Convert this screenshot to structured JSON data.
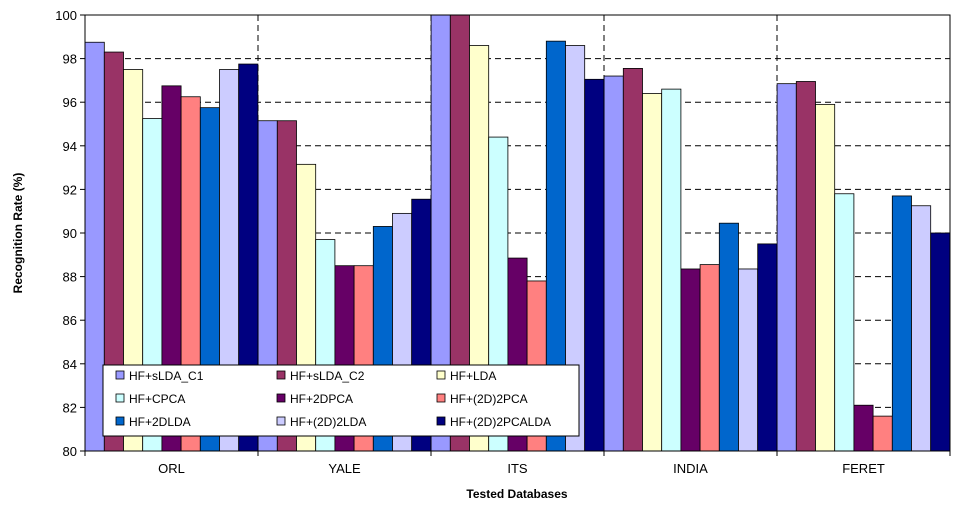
{
  "chart_data": {
    "type": "bar",
    "xlabel": "Tested Databases",
    "ylabel": "Recognition Rate (%)",
    "ylim": [
      80,
      100
    ],
    "yticks": [
      80,
      82,
      84,
      86,
      88,
      90,
      92,
      94,
      96,
      98,
      100
    ],
    "grid": "dashed",
    "legend_position": "bottom-left",
    "categories": [
      "ORL",
      "YALE",
      "ITS",
      "INDIA",
      "FERET"
    ],
    "series": [
      {
        "name": "HF+sLDA_C1",
        "color": "#9999ff",
        "values": [
          98.75,
          95.15,
          100,
          97.2,
          96.85
        ]
      },
      {
        "name": "HF+sLDA_C2",
        "color": "#993366",
        "values": [
          98.3,
          95.15,
          100,
          97.55,
          96.95
        ]
      },
      {
        "name": "HF+LDA",
        "color": "#ffffcc",
        "values": [
          97.5,
          93.15,
          98.6,
          96.4,
          95.9
        ]
      },
      {
        "name": "HF+CPCA",
        "color": "#ccffff",
        "values": [
          95.25,
          89.7,
          94.4,
          96.6,
          91.8
        ]
      },
      {
        "name": "HF+2DPCA",
        "color": "#660066",
        "values": [
          96.75,
          88.5,
          88.85,
          88.35,
          82.1
        ]
      },
      {
        "name": "HF+(2D)2PCA",
        "color": "#ff8080",
        "values": [
          96.25,
          88.5,
          87.8,
          88.55,
          81.6
        ]
      },
      {
        "name": "HF+2DLDA",
        "color": "#0066cc",
        "values": [
          95.75,
          90.3,
          98.8,
          90.45,
          91.7
        ]
      },
      {
        "name": "HF+(2D)2LDA",
        "color": "#ccccff",
        "values": [
          97.5,
          90.9,
          98.6,
          88.35,
          91.25
        ]
      },
      {
        "name": "HF+(2D)2PCALDA",
        "color": "#000080",
        "values": [
          97.75,
          91.55,
          97.05,
          89.5,
          90.0
        ]
      }
    ]
  }
}
